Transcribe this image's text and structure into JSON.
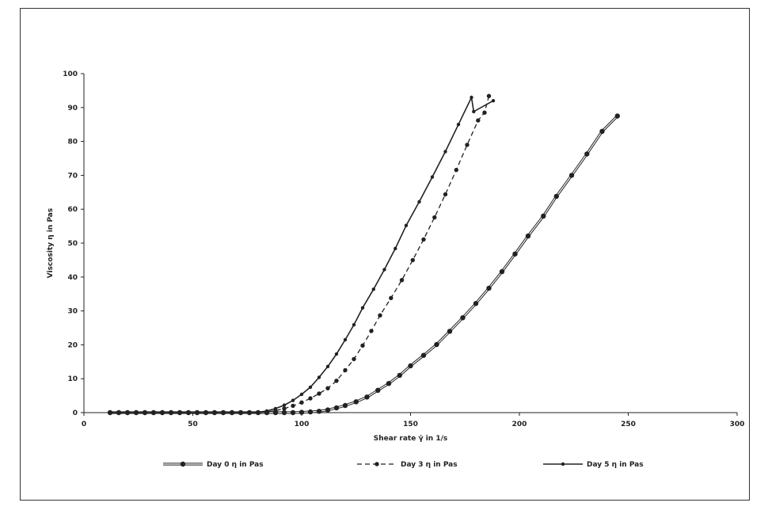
{
  "chart_data": {
    "type": "line",
    "title": "",
    "xlabel": "Shear rate γ̇ in 1/s",
    "ylabel": "Viscosity η in Pas",
    "xlim": [
      0,
      300
    ],
    "ylim": [
      0,
      100
    ],
    "xticks": [
      0,
      50,
      100,
      150,
      200,
      250,
      300
    ],
    "yticks": [
      0,
      10,
      20,
      30,
      40,
      50,
      60,
      70,
      80,
      90,
      100
    ],
    "grid": false,
    "legend_position": "bottom",
    "series": [
      {
        "name": "Day 0 η in Pas",
        "style": "double",
        "marker_size": "large",
        "points": [
          [
            12,
            0
          ],
          [
            16,
            0
          ],
          [
            20,
            0
          ],
          [
            24,
            0
          ],
          [
            28,
            0
          ],
          [
            32,
            0
          ],
          [
            36,
            0
          ],
          [
            40,
            0
          ],
          [
            44,
            0
          ],
          [
            48,
            0
          ],
          [
            52,
            0
          ],
          [
            56,
            0
          ],
          [
            60,
            0
          ],
          [
            64,
            0
          ],
          [
            68,
            0
          ],
          [
            72,
            0
          ],
          [
            76,
            0
          ],
          [
            80,
            0
          ],
          [
            84,
            0
          ],
          [
            88,
            0
          ],
          [
            92,
            0
          ],
          [
            96,
            0
          ],
          [
            100,
            0.1
          ],
          [
            104,
            0.2
          ],
          [
            108,
            0.4
          ],
          [
            112,
            0.8
          ],
          [
            116,
            1.4
          ],
          [
            120,
            2.1
          ],
          [
            125,
            3.2
          ],
          [
            130,
            4.6
          ],
          [
            135,
            6.6
          ],
          [
            140,
            8.6
          ],
          [
            145,
            11
          ],
          [
            150,
            13.8
          ],
          [
            156,
            16.9
          ],
          [
            162,
            20.1
          ],
          [
            168,
            24
          ],
          [
            174,
            28
          ],
          [
            180,
            32.2
          ],
          [
            186,
            36.7
          ],
          [
            192,
            41.6
          ],
          [
            198,
            46.8
          ],
          [
            204,
            52.1
          ],
          [
            211,
            58
          ],
          [
            217,
            63.8
          ],
          [
            224,
            70
          ],
          [
            231,
            76.3
          ],
          [
            238,
            83
          ],
          [
            245,
            87.5
          ]
        ]
      },
      {
        "name": "Day 3 η in Pas",
        "style": "dashed",
        "marker_size": "medium",
        "points": [
          [
            12,
            0
          ],
          [
            16,
            0
          ],
          [
            20,
            0
          ],
          [
            24,
            0
          ],
          [
            28,
            0
          ],
          [
            32,
            0
          ],
          [
            36,
            0
          ],
          [
            40,
            0
          ],
          [
            44,
            0
          ],
          [
            48,
            0
          ],
          [
            52,
            0
          ],
          [
            56,
            0
          ],
          [
            60,
            0
          ],
          [
            64,
            0
          ],
          [
            68,
            0
          ],
          [
            72,
            0
          ],
          [
            76,
            0
          ],
          [
            80,
            0
          ],
          [
            84,
            0.2
          ],
          [
            88,
            0.6
          ],
          [
            92,
            1.2
          ],
          [
            96,
            2
          ],
          [
            100,
            3
          ],
          [
            104,
            4.2
          ],
          [
            108,
            5.6
          ],
          [
            112,
            7.2
          ],
          [
            116,
            9.4
          ],
          [
            120,
            12.5
          ],
          [
            124,
            15.8
          ],
          [
            128,
            19.8
          ],
          [
            132,
            24.1
          ],
          [
            136,
            28.7
          ],
          [
            141,
            33.8
          ],
          [
            146,
            39.1
          ],
          [
            151,
            45
          ],
          [
            156,
            51.1
          ],
          [
            161,
            57.6
          ],
          [
            166,
            64.4
          ],
          [
            171,
            71.6
          ],
          [
            176,
            79
          ],
          [
            181,
            86.2
          ],
          [
            184,
            88.5
          ],
          [
            186,
            93.4
          ]
        ]
      },
      {
        "name": "Day 5 η in Pas",
        "style": "solid",
        "marker_size": "small",
        "points": [
          [
            12,
            0
          ],
          [
            16,
            0
          ],
          [
            20,
            0
          ],
          [
            24,
            0
          ],
          [
            28,
            0
          ],
          [
            32,
            0
          ],
          [
            36,
            0
          ],
          [
            40,
            0
          ],
          [
            44,
            0
          ],
          [
            48,
            0
          ],
          [
            52,
            0
          ],
          [
            56,
            0
          ],
          [
            60,
            0
          ],
          [
            64,
            0
          ],
          [
            68,
            0
          ],
          [
            72,
            0
          ],
          [
            76,
            0
          ],
          [
            80,
            0.1
          ],
          [
            84,
            0.5
          ],
          [
            88,
            1.2
          ],
          [
            92,
            2.2
          ],
          [
            96,
            3.6
          ],
          [
            100,
            5.4
          ],
          [
            104,
            7.5
          ],
          [
            108,
            10.4
          ],
          [
            112,
            13.6
          ],
          [
            116,
            17.3
          ],
          [
            120,
            21.5
          ],
          [
            124,
            25.9
          ],
          [
            128,
            30.9
          ],
          [
            133,
            36.4
          ],
          [
            138,
            42.2
          ],
          [
            143,
            48.4
          ],
          [
            148,
            55.2
          ],
          [
            154,
            62.2
          ],
          [
            160,
            69.5
          ],
          [
            166,
            77
          ],
          [
            172,
            85
          ],
          [
            178,
            93
          ],
          [
            179,
            88.8
          ],
          [
            188,
            92
          ]
        ]
      }
    ]
  }
}
